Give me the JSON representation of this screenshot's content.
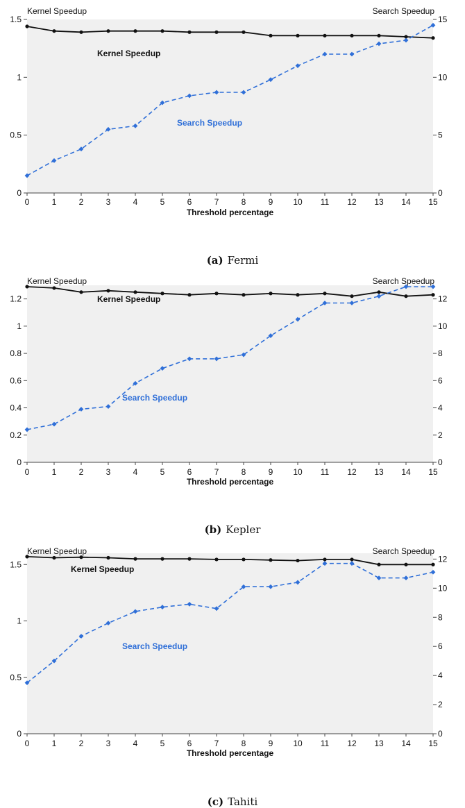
{
  "colors": {
    "kernel": "#111111",
    "search": "#2f6fd8",
    "plot_bg": "#f0f0f0"
  },
  "chart_data": [
    {
      "type": "line",
      "caption_letter": "(a)",
      "caption_name": "Fermi",
      "left_axis_label": "Kernel Speedup",
      "right_axis_label": "Search Speedup",
      "xlabel": "Threshold percentage",
      "x": [
        0,
        1,
        2,
        3,
        4,
        5,
        6,
        7,
        8,
        9,
        10,
        11,
        12,
        13,
        14,
        15
      ],
      "xlim": [
        0,
        15
      ],
      "ylim_left": [
        0,
        1.5
      ],
      "ylim_right": [
        0,
        15
      ],
      "yticks_left": [
        0,
        0.5,
        1,
        1.5
      ],
      "yticks_left_labels": [
        "0",
        "0.5",
        "1",
        "1.5"
      ],
      "yticks_right": [
        0,
        5,
        10,
        15
      ],
      "series": [
        {
          "name": "Kernel Speedup",
          "axis": "left",
          "style": "solid",
          "values": [
            1.44,
            1.4,
            1.39,
            1.4,
            1.4,
            1.4,
            1.39,
            1.39,
            1.39,
            1.36,
            1.36,
            1.36,
            1.36,
            1.36,
            1.35,
            1.34
          ]
        },
        {
          "name": "Search Speedup",
          "axis": "right",
          "style": "dashed",
          "values": [
            1.5,
            2.8,
            3.8,
            5.5,
            5.8,
            7.8,
            8.4,
            8.7,
            8.7,
            9.8,
            11.0,
            12.0,
            12.0,
            12.9,
            13.2,
            14.5
          ]
        }
      ],
      "annotations": [
        "Kernel Speedup",
        "Search Speedup"
      ],
      "grid": false
    },
    {
      "type": "line",
      "caption_letter": "(b)",
      "caption_name": "Kepler",
      "left_axis_label": "Kernel Speedup",
      "right_axis_label": "Search Speedup",
      "xlabel": "Threshold percentage",
      "x": [
        0,
        1,
        2,
        3,
        4,
        5,
        6,
        7,
        8,
        9,
        10,
        11,
        12,
        13,
        14,
        15
      ],
      "xlim": [
        0,
        15
      ],
      "ylim_left": [
        0,
        1.3
      ],
      "ylim_right": [
        0,
        13
      ],
      "yticks_left": [
        0,
        0.2,
        0.4,
        0.6,
        0.8,
        1,
        1.2
      ],
      "yticks_left_labels": [
        "0",
        "0.2",
        "0.4",
        "0.6",
        "0.8",
        "1",
        "1.2"
      ],
      "yticks_right": [
        0,
        2,
        4,
        6,
        8,
        10,
        12
      ],
      "series": [
        {
          "name": "Kernel Speedup",
          "axis": "left",
          "style": "solid",
          "values": [
            1.29,
            1.28,
            1.25,
            1.26,
            1.25,
            1.24,
            1.23,
            1.24,
            1.23,
            1.24,
            1.23,
            1.24,
            1.22,
            1.25,
            1.22,
            1.23
          ]
        },
        {
          "name": "Search Speedup",
          "axis": "right",
          "style": "dashed",
          "values": [
            2.4,
            2.8,
            3.9,
            4.1,
            5.8,
            6.9,
            7.6,
            7.6,
            7.9,
            9.3,
            10.5,
            11.7,
            11.7,
            12.2,
            12.9,
            12.9
          ]
        }
      ],
      "annotations": [
        "Kernel Speedup",
        "Search Speedup"
      ],
      "grid": false
    },
    {
      "type": "line",
      "caption_letter": "(c)",
      "caption_name": "Tahiti",
      "left_axis_label": "Kernel Speedup",
      "right_axis_label": "Search Speedup",
      "xlabel": "Threshold percentage",
      "x": [
        0,
        1,
        2,
        3,
        4,
        5,
        6,
        7,
        8,
        9,
        10,
        11,
        12,
        13,
        14,
        15
      ],
      "xlim": [
        0,
        15
      ],
      "ylim_left": [
        0,
        1.6
      ],
      "ylim_right": [
        0,
        12.4
      ],
      "yticks_left": [
        0,
        0.5,
        1,
        1.5
      ],
      "yticks_left_labels": [
        "0",
        "0.5",
        "1",
        "1.5"
      ],
      "yticks_right": [
        0,
        2,
        4,
        6,
        8,
        10,
        12
      ],
      "series": [
        {
          "name": "Kernel Speedup",
          "axis": "left",
          "style": "solid",
          "values": [
            1.57,
            1.56,
            1.565,
            1.56,
            1.55,
            1.55,
            1.55,
            1.545,
            1.545,
            1.54,
            1.535,
            1.545,
            1.545,
            1.5,
            1.5,
            1.5
          ]
        },
        {
          "name": "Search Speedup",
          "axis": "right",
          "style": "dashed",
          "values": [
            3.5,
            5.0,
            6.7,
            7.6,
            8.4,
            8.7,
            8.9,
            8.6,
            10.1,
            10.1,
            10.4,
            11.7,
            11.7,
            10.7,
            10.7,
            11.1
          ]
        }
      ],
      "annotations": [
        "Kernel Speedup",
        "Search Speedup"
      ],
      "grid": false
    }
  ]
}
